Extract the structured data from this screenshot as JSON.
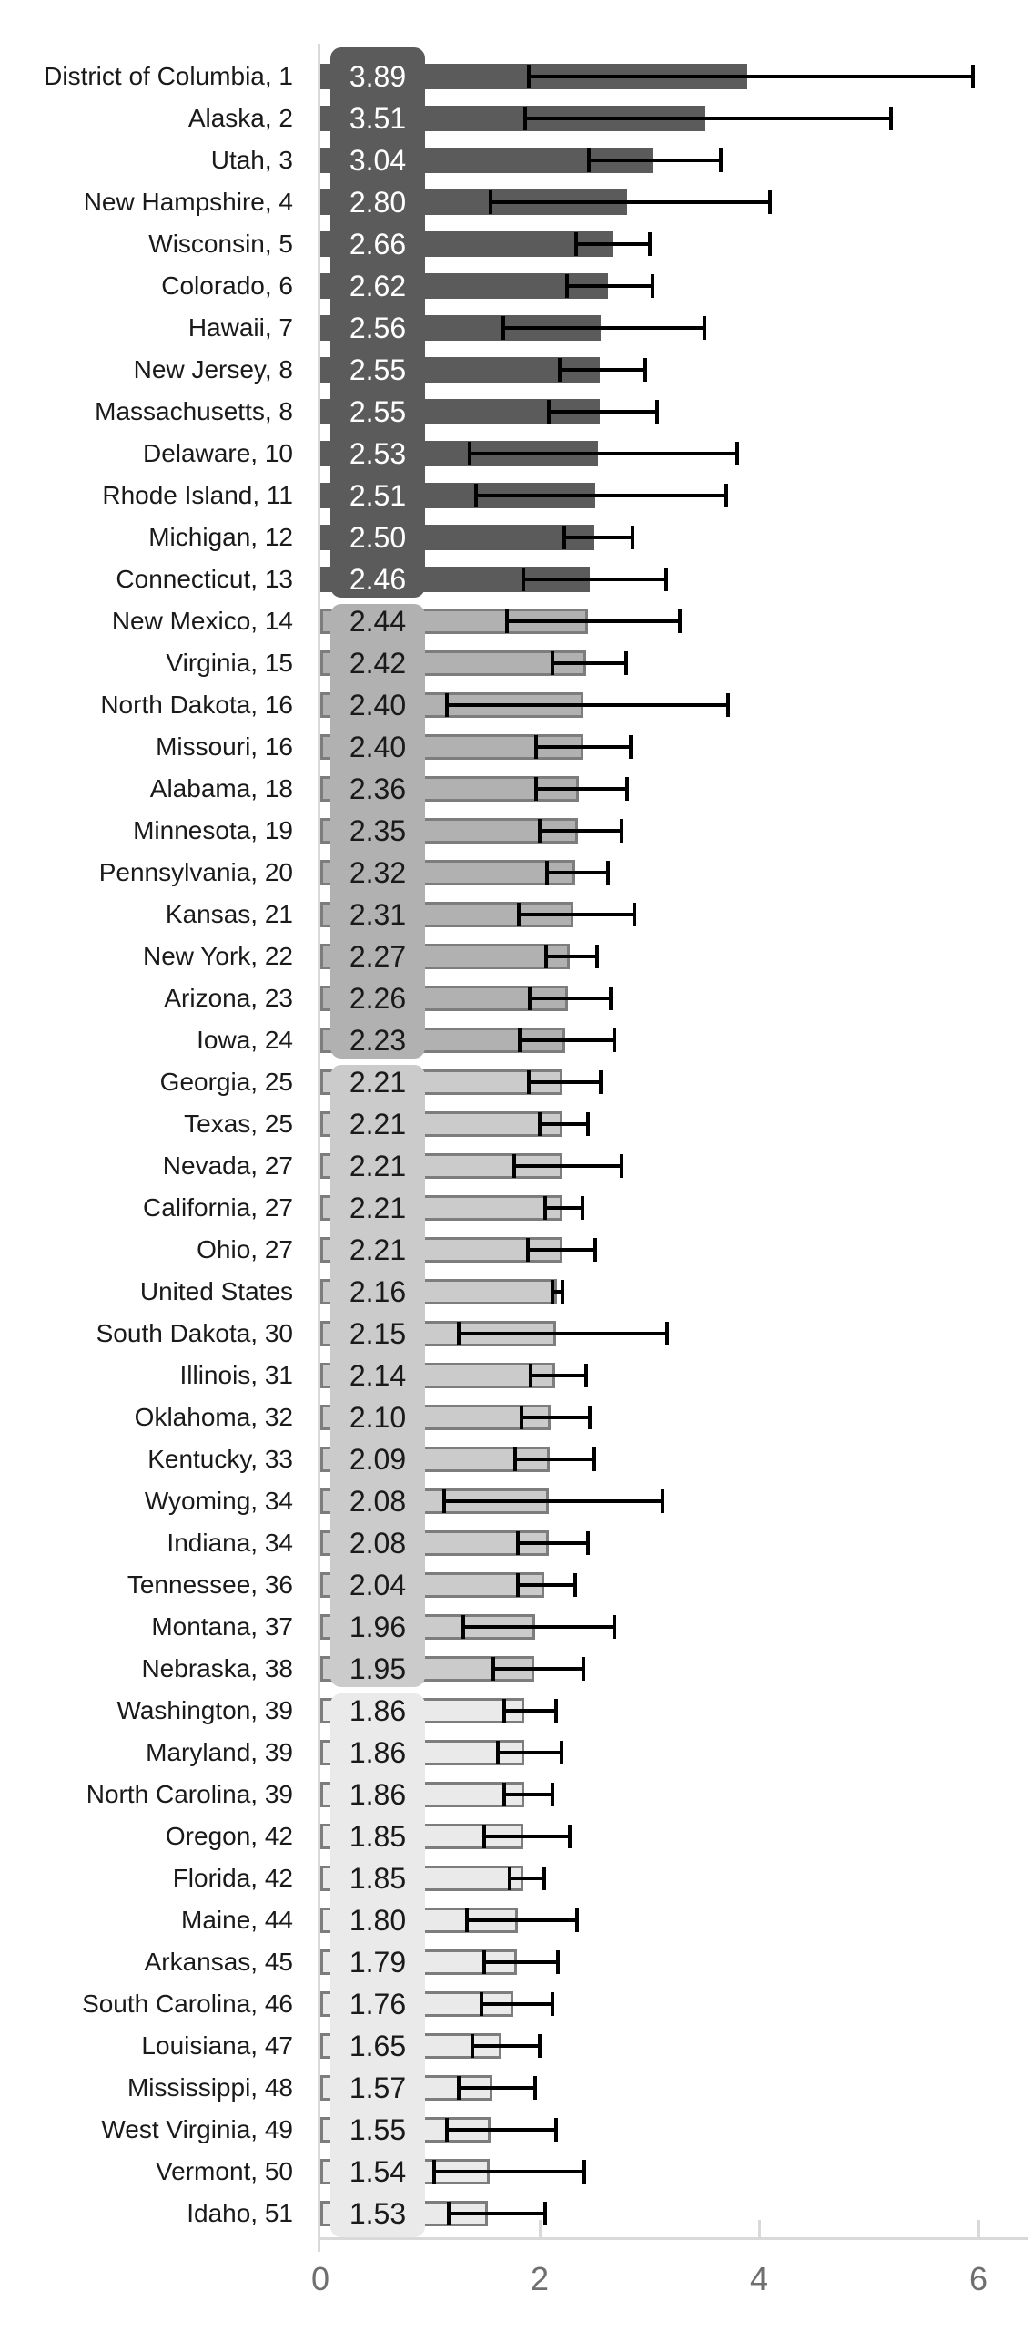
{
  "chart_data": {
    "type": "bar",
    "orientation": "horizontal",
    "title": "",
    "xlabel": "",
    "ylabel": "",
    "xlim": [
      0,
      6
    ],
    "x_ticks": [
      0,
      2,
      4,
      6
    ],
    "x_tick_labels": [
      "0",
      "2",
      "4",
      "6"
    ],
    "grid": false,
    "legend": "none",
    "error_bars": true,
    "groups": [
      {
        "id": 1,
        "box_color": "#5b5b5b",
        "bar_fill": "#5b5b5b",
        "bar_outline": "none",
        "text_color": "#ffffff"
      },
      {
        "id": 2,
        "box_color": "#b1b1b1",
        "bar_fill": "#b1b1b1",
        "bar_outline": "#7d7d7d",
        "text_color": "#1a1a1a"
      },
      {
        "id": 3,
        "box_color": "#cbcbcb",
        "bar_fill": "#cbcbcb",
        "bar_outline": "#7d7d7d",
        "text_color": "#1a1a1a"
      },
      {
        "id": 4,
        "box_color": "#eaeaea",
        "bar_fill": "#eaeaea",
        "bar_outline": "#7d7d7d",
        "text_color": "#1a1a1a"
      }
    ],
    "rows": [
      {
        "label": "District of Columbia, 1",
        "value": 3.89,
        "value_text": "3.89",
        "ci_low": 1.9,
        "ci_high": 5.95,
        "group": 1
      },
      {
        "label": "Alaska, 2",
        "value": 3.51,
        "value_text": "3.51",
        "ci_low": 1.87,
        "ci_high": 5.2,
        "group": 1
      },
      {
        "label": "Utah, 3",
        "value": 3.04,
        "value_text": "3.04",
        "ci_low": 2.45,
        "ci_high": 3.65,
        "group": 1
      },
      {
        "label": "New Hampshire, 4",
        "value": 2.8,
        "value_text": "2.80",
        "ci_low": 1.55,
        "ci_high": 4.1,
        "group": 1
      },
      {
        "label": "Wisconsin, 5",
        "value": 2.66,
        "value_text": "2.66",
        "ci_low": 2.33,
        "ci_high": 3.0,
        "group": 1
      },
      {
        "label": "Colorado, 6",
        "value": 2.62,
        "value_text": "2.62",
        "ci_low": 2.25,
        "ci_high": 3.03,
        "group": 1
      },
      {
        "label": "Hawaii, 7",
        "value": 2.56,
        "value_text": "2.56",
        "ci_low": 1.67,
        "ci_high": 3.5,
        "group": 1
      },
      {
        "label": "New Jersey, 8",
        "value": 2.55,
        "value_text": "2.55",
        "ci_low": 2.18,
        "ci_high": 2.96,
        "group": 1
      },
      {
        "label": "Massachusetts, 8",
        "value": 2.55,
        "value_text": "2.55",
        "ci_low": 2.08,
        "ci_high": 3.07,
        "group": 1
      },
      {
        "label": "Delaware, 10",
        "value": 2.53,
        "value_text": "2.53",
        "ci_low": 1.36,
        "ci_high": 3.8,
        "group": 1
      },
      {
        "label": "Rhode Island, 11",
        "value": 2.51,
        "value_text": "2.51",
        "ci_low": 1.42,
        "ci_high": 3.7,
        "group": 1
      },
      {
        "label": "Michigan, 12",
        "value": 2.5,
        "value_text": "2.50",
        "ci_low": 2.22,
        "ci_high": 2.85,
        "group": 1
      },
      {
        "label": "Connecticut, 13",
        "value": 2.46,
        "value_text": "2.46",
        "ci_low": 1.85,
        "ci_high": 3.15,
        "group": 1
      },
      {
        "label": "New Mexico, 14",
        "value": 2.44,
        "value_text": "2.44",
        "ci_low": 1.7,
        "ci_high": 3.28,
        "group": 2
      },
      {
        "label": "Virginia, 15",
        "value": 2.42,
        "value_text": "2.42",
        "ci_low": 2.12,
        "ci_high": 2.79,
        "group": 2
      },
      {
        "label": "North Dakota, 16",
        "value": 2.4,
        "value_text": "2.40",
        "ci_low": 1.15,
        "ci_high": 3.72,
        "group": 2
      },
      {
        "label": "Missouri, 16",
        "value": 2.4,
        "value_text": "2.40",
        "ci_low": 1.97,
        "ci_high": 2.83,
        "group": 2
      },
      {
        "label": "Alabama, 18",
        "value": 2.36,
        "value_text": "2.36",
        "ci_low": 1.97,
        "ci_high": 2.8,
        "group": 2
      },
      {
        "label": "Minnesota, 19",
        "value": 2.35,
        "value_text": "2.35",
        "ci_low": 2.0,
        "ci_high": 2.75,
        "group": 2
      },
      {
        "label": "Pennsylvania, 20",
        "value": 2.32,
        "value_text": "2.32",
        "ci_low": 2.07,
        "ci_high": 2.62,
        "group": 2
      },
      {
        "label": "Kansas, 21",
        "value": 2.31,
        "value_text": "2.31",
        "ci_low": 1.81,
        "ci_high": 2.86,
        "group": 2
      },
      {
        "label": "New York, 22",
        "value": 2.27,
        "value_text": "2.27",
        "ci_low": 2.06,
        "ci_high": 2.52,
        "group": 2
      },
      {
        "label": "Arizona, 23",
        "value": 2.26,
        "value_text": "2.26",
        "ci_low": 1.91,
        "ci_high": 2.65,
        "group": 2
      },
      {
        "label": "Iowa, 24",
        "value": 2.23,
        "value_text": "2.23",
        "ci_low": 1.82,
        "ci_high": 2.68,
        "group": 2
      },
      {
        "label": "Georgia, 25",
        "value": 2.21,
        "value_text": "2.21",
        "ci_low": 1.9,
        "ci_high": 2.56,
        "group": 3
      },
      {
        "label": "Texas, 25",
        "value": 2.21,
        "value_text": "2.21",
        "ci_low": 2.0,
        "ci_high": 2.44,
        "group": 3
      },
      {
        "label": "Nevada, 27",
        "value": 2.21,
        "value_text": "2.21",
        "ci_low": 1.77,
        "ci_high": 2.75,
        "group": 3
      },
      {
        "label": "California, 27",
        "value": 2.21,
        "value_text": "2.21",
        "ci_low": 2.05,
        "ci_high": 2.39,
        "group": 3
      },
      {
        "label": "Ohio, 27",
        "value": 2.21,
        "value_text": "2.21",
        "ci_low": 1.89,
        "ci_high": 2.51,
        "group": 3
      },
      {
        "label": "United States",
        "value": 2.16,
        "value_text": "2.16",
        "ci_low": 2.12,
        "ci_high": 2.21,
        "group": 3
      },
      {
        "label": "South Dakota, 30",
        "value": 2.15,
        "value_text": "2.15",
        "ci_low": 1.26,
        "ci_high": 3.16,
        "group": 3
      },
      {
        "label": "Illinois, 31",
        "value": 2.14,
        "value_text": "2.14",
        "ci_low": 1.92,
        "ci_high": 2.42,
        "group": 3
      },
      {
        "label": "Oklahoma, 32",
        "value": 2.1,
        "value_text": "2.10",
        "ci_low": 1.83,
        "ci_high": 2.46,
        "group": 3
      },
      {
        "label": "Kentucky, 33",
        "value": 2.09,
        "value_text": "2.09",
        "ci_low": 1.78,
        "ci_high": 2.5,
        "group": 3
      },
      {
        "label": "Wyoming, 34",
        "value": 2.08,
        "value_text": "2.08",
        "ci_low": 1.13,
        "ci_high": 3.12,
        "group": 3
      },
      {
        "label": "Indiana, 34",
        "value": 2.08,
        "value_text": "2.08",
        "ci_low": 1.8,
        "ci_high": 2.44,
        "group": 3
      },
      {
        "label": "Tennessee, 36",
        "value": 2.04,
        "value_text": "2.04",
        "ci_low": 1.8,
        "ci_high": 2.32,
        "group": 3
      },
      {
        "label": "Montana, 37",
        "value": 1.96,
        "value_text": "1.96",
        "ci_low": 1.3,
        "ci_high": 2.68,
        "group": 3
      },
      {
        "label": "Nebraska, 38",
        "value": 1.95,
        "value_text": "1.95",
        "ci_low": 1.58,
        "ci_high": 2.4,
        "group": 3
      },
      {
        "label": "Washington, 39",
        "value": 1.86,
        "value_text": "1.86",
        "ci_low": 1.68,
        "ci_high": 2.15,
        "group": 4
      },
      {
        "label": "Maryland, 39",
        "value": 1.86,
        "value_text": "1.86",
        "ci_low": 1.62,
        "ci_high": 2.2,
        "group": 4
      },
      {
        "label": "North Carolina, 39",
        "value": 1.86,
        "value_text": "1.86",
        "ci_low": 1.68,
        "ci_high": 2.12,
        "group": 4
      },
      {
        "label": "Oregon, 42",
        "value": 1.85,
        "value_text": "1.85",
        "ci_low": 1.49,
        "ci_high": 2.27,
        "group": 4
      },
      {
        "label": "Florida, 42",
        "value": 1.85,
        "value_text": "1.85",
        "ci_low": 1.73,
        "ci_high": 2.04,
        "group": 4
      },
      {
        "label": "Maine, 44",
        "value": 1.8,
        "value_text": "1.80",
        "ci_low": 1.34,
        "ci_high": 2.34,
        "group": 4
      },
      {
        "label": "Arkansas, 45",
        "value": 1.79,
        "value_text": "1.79",
        "ci_low": 1.49,
        "ci_high": 2.17,
        "group": 4
      },
      {
        "label": "South Carolina, 46",
        "value": 1.76,
        "value_text": "1.76",
        "ci_low": 1.47,
        "ci_high": 2.12,
        "group": 4
      },
      {
        "label": "Louisiana, 47",
        "value": 1.65,
        "value_text": "1.65",
        "ci_low": 1.39,
        "ci_high": 2.0,
        "group": 4
      },
      {
        "label": "Mississippi, 48",
        "value": 1.57,
        "value_text": "1.57",
        "ci_low": 1.26,
        "ci_high": 1.96,
        "group": 4
      },
      {
        "label": "West Virginia, 49",
        "value": 1.55,
        "value_text": "1.55",
        "ci_low": 1.15,
        "ci_high": 2.15,
        "group": 4
      },
      {
        "label": "Vermont, 50",
        "value": 1.54,
        "value_text": "1.54",
        "ci_low": 1.04,
        "ci_high": 2.41,
        "group": 4
      },
      {
        "label": "Idaho, 51",
        "value": 1.53,
        "value_text": "1.53",
        "ci_low": 1.17,
        "ci_high": 2.05,
        "group": 4
      }
    ]
  },
  "colors": {
    "background": "#ffffff",
    "axis_line": "#d9d9d9",
    "error_bar": "#000000",
    "label_text": "#1a1a1a",
    "tick_text": "#6f6f6f"
  }
}
